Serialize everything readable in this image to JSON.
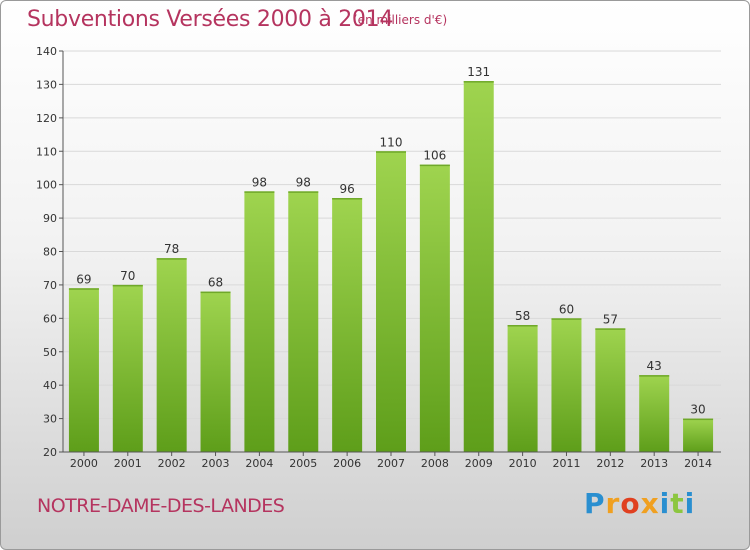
{
  "title": "Subventions Versées 2000 à 2014",
  "subtitle": "(en milliers d'€)",
  "town": "NOTRE-DAME-DES-LANDES",
  "logo": {
    "text": "Proxiti",
    "letters": [
      {
        "ch": "P",
        "color": "#2a8fd0"
      },
      {
        "ch": "r",
        "color": "#f0a020"
      },
      {
        "ch": "o",
        "color": "#e04020"
      },
      {
        "ch": "x",
        "color": "#f0a020"
      },
      {
        "ch": "i",
        "color": "#2a8fd0"
      },
      {
        "ch": "t",
        "color": "#8cc63f"
      },
      {
        "ch": "i",
        "color": "#2a8fd0"
      }
    ]
  },
  "colors": {
    "bar_top": "#9fd44f",
    "bar_bottom": "#5e9e1a",
    "title": "#b5345f",
    "grid": "#d9d9d9"
  },
  "chart_data": {
    "type": "bar",
    "categories": [
      "2000",
      "2001",
      "2002",
      "2003",
      "2004",
      "2005",
      "2006",
      "2007",
      "2008",
      "2009",
      "2010",
      "2011",
      "2012",
      "2013",
      "2014"
    ],
    "values": [
      69,
      70,
      78,
      68,
      98,
      98,
      96,
      110,
      106,
      131,
      58,
      60,
      57,
      43,
      30
    ],
    "title": "Subventions Versées 2000 à 2014",
    "xlabel": "",
    "ylabel": "",
    "ylim": [
      20,
      140
    ],
    "yticks": [
      20,
      30,
      40,
      50,
      60,
      70,
      80,
      90,
      100,
      110,
      120,
      130,
      140
    ],
    "grid": true,
    "data_labels": true
  }
}
